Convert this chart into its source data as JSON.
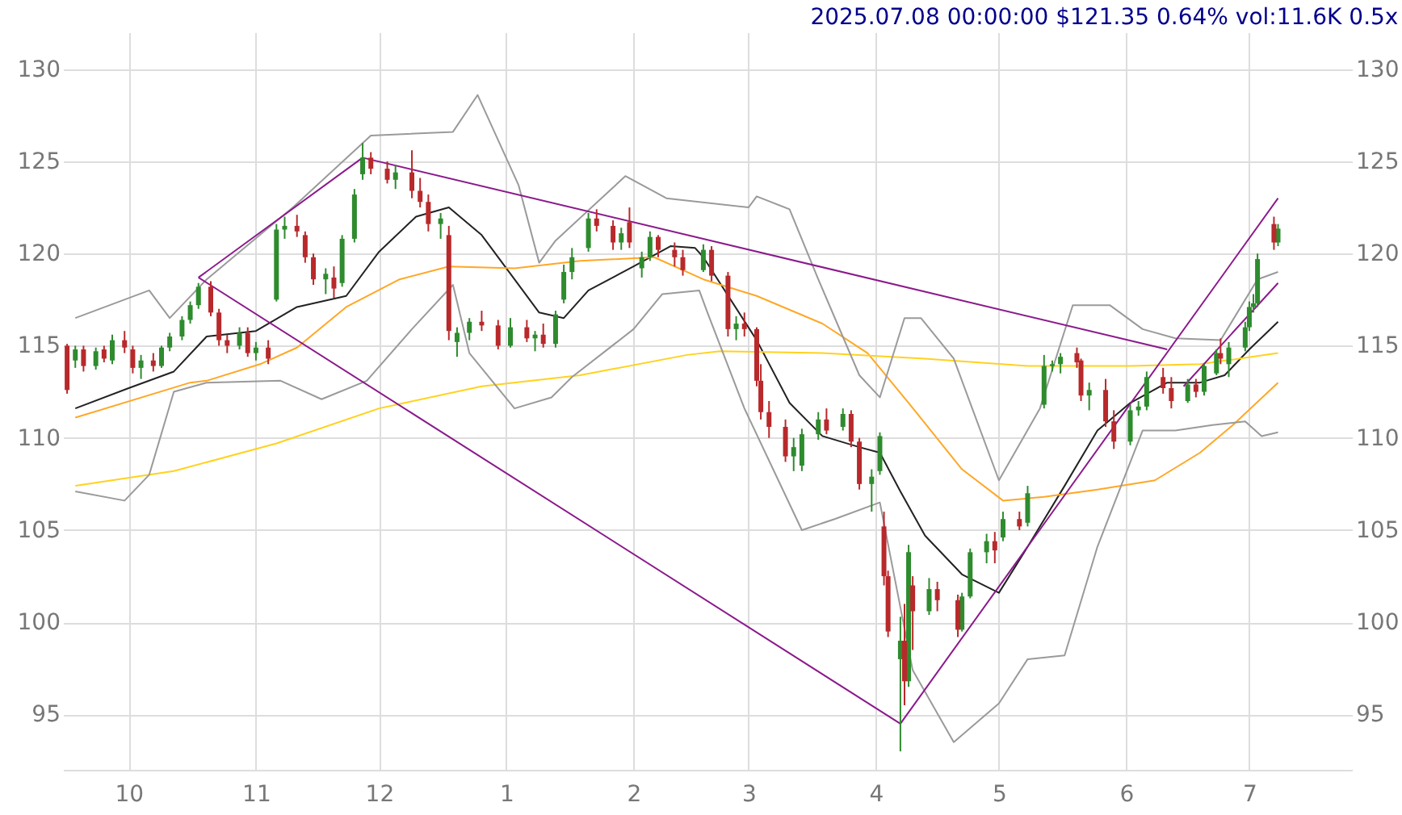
{
  "chart_data": {
    "type": "candlestick",
    "title": "2025.07.08 00:00:00 $121.35 0.64% vol:11.6K 0.5x",
    "xlim": [
      "2024-09-15",
      "2025-07-26"
    ],
    "xticks": [
      {
        "value": "2024-10-01",
        "label": "10"
      },
      {
        "value": "2024-11-01",
        "label": "11"
      },
      {
        "value": "2024-12-01",
        "label": "12"
      },
      {
        "value": "2025-01-01",
        "label": "1"
      },
      {
        "value": "2025-02-01",
        "label": "2"
      },
      {
        "value": "2025-03-01",
        "label": "3"
      },
      {
        "value": "2025-04-01",
        "label": "4"
      },
      {
        "value": "2025-05-01",
        "label": "5"
      },
      {
        "value": "2025-06-01",
        "label": "6"
      },
      {
        "value": "2025-07-01",
        "label": "7"
      }
    ],
    "ylim": [
      92,
      132
    ],
    "yticks": [
      95,
      100,
      105,
      110,
      115,
      120,
      125,
      130
    ],
    "y2lim": [
      92,
      132
    ],
    "y2ticks": [
      95,
      100,
      105,
      110,
      115,
      120,
      125,
      130
    ],
    "grid": true,
    "series": [
      {
        "color": "#2e8b2e",
        "x": [
          "2024-09-18",
          "2024-09-23",
          "2024-09-27",
          "2024-10-04",
          "2024-10-09",
          "2024-10-11",
          "2024-10-14",
          "2024-10-16",
          "2024-10-18",
          "2024-10-28",
          "2024-11-01",
          "2024-11-06",
          "2024-11-08",
          "2024-11-18",
          "2024-11-22",
          "2024-11-25",
          "2024-11-27",
          "2024-12-05",
          "2024-12-16",
          "2024-12-20",
          "2024-12-23",
          "2025-01-02",
          "2025-01-08",
          "2025-01-13",
          "2025-01-15",
          "2025-01-17",
          "2025-01-21",
          "2025-01-29",
          "2025-02-03",
          "2025-02-05",
          "2025-02-18",
          "2025-02-26",
          "2025-03-12",
          "2025-03-14",
          "2025-03-18",
          "2025-03-24",
          "2025-03-31",
          "2025-04-02",
          "2025-04-07",
          "2025-04-09",
          "2025-04-14",
          "2025-04-22",
          "2025-04-24",
          "2025-04-28",
          "2025-05-02",
          "2025-05-08",
          "2025-05-12",
          "2025-05-14",
          "2025-05-16",
          "2025-05-23",
          "2025-06-02",
          "2025-06-04",
          "2025-06-06",
          "2025-06-16",
          "2025-06-20",
          "2025-06-23",
          "2025-06-26",
          "2025-06-30",
          "2025-07-01",
          "2025-07-02",
          "2025-07-03",
          "2025-07-08"
        ],
        "ohlc": [
          [
            114.2,
            115.0,
            113.8,
            114.8
          ],
          [
            113.9,
            114.9,
            113.7,
            114.7
          ],
          [
            114.2,
            115.6,
            114.0,
            115.3
          ],
          [
            113.8,
            114.5,
            113.2,
            114.2
          ],
          [
            113.9,
            115.0,
            113.8,
            114.9
          ],
          [
            114.9,
            115.7,
            114.7,
            115.5
          ],
          [
            115.5,
            116.6,
            115.3,
            116.4
          ],
          [
            116.4,
            117.4,
            116.2,
            117.2
          ],
          [
            117.2,
            118.4,
            117.0,
            118.2
          ],
          [
            115.0,
            116.0,
            114.8,
            115.7
          ],
          [
            114.6,
            115.2,
            114.2,
            114.9
          ],
          [
            117.5,
            121.6,
            117.4,
            121.3
          ],
          [
            121.3,
            122.0,
            120.8,
            121.5
          ],
          [
            118.6,
            119.2,
            117.8,
            118.9
          ],
          [
            118.4,
            121.0,
            118.2,
            120.8
          ],
          [
            120.8,
            123.5,
            120.6,
            123.2
          ],
          [
            124.3,
            126.0,
            124.0,
            125.2
          ],
          [
            124.0,
            124.8,
            123.5,
            124.4
          ],
          [
            121.6,
            122.2,
            120.8,
            121.9
          ],
          [
            115.2,
            116.0,
            114.4,
            115.7
          ],
          [
            115.7,
            116.5,
            115.3,
            116.3
          ],
          [
            115.0,
            116.5,
            114.9,
            116.0
          ],
          [
            115.4,
            115.8,
            114.7,
            115.6
          ],
          [
            115.1,
            116.9,
            114.9,
            116.7
          ],
          [
            117.5,
            119.4,
            117.3,
            119.0
          ],
          [
            119.0,
            120.3,
            118.6,
            119.8
          ],
          [
            120.3,
            122.2,
            120.1,
            121.9
          ],
          [
            120.6,
            121.4,
            120.2,
            121.1
          ],
          [
            119.2,
            120.1,
            118.7,
            119.8
          ],
          [
            119.8,
            121.2,
            119.6,
            120.9
          ],
          [
            119.1,
            120.5,
            119.0,
            120.2
          ],
          [
            115.9,
            116.6,
            115.3,
            116.2
          ],
          [
            109.0,
            110.0,
            108.2,
            109.5
          ],
          [
            108.5,
            110.5,
            108.2,
            110.2
          ],
          [
            110.2,
            111.4,
            109.9,
            111.0
          ],
          [
            110.6,
            111.6,
            110.4,
            111.3
          ],
          [
            107.5,
            108.3,
            106.0,
            107.9
          ],
          [
            108.2,
            110.3,
            108.0,
            110.1
          ],
          [
            98.0,
            100.3,
            93.0,
            99.0
          ],
          [
            96.8,
            104.2,
            96.5,
            103.8
          ],
          [
            100.6,
            102.4,
            100.4,
            101.8
          ],
          [
            99.6,
            101.6,
            99.5,
            101.4
          ],
          [
            101.4,
            104.0,
            101.3,
            103.8
          ],
          [
            103.8,
            104.8,
            103.2,
            104.4
          ],
          [
            104.6,
            106.0,
            104.4,
            105.6
          ],
          [
            105.4,
            107.4,
            105.2,
            107.0
          ],
          [
            111.8,
            114.5,
            111.6,
            113.9
          ],
          [
            113.9,
            114.2,
            113.6,
            114.0
          ],
          [
            114.0,
            114.6,
            113.5,
            114.4
          ],
          [
            112.3,
            113.0,
            111.5,
            112.6
          ],
          [
            109.8,
            111.8,
            109.6,
            111.5
          ],
          [
            111.5,
            112.0,
            111.2,
            111.7
          ],
          [
            111.7,
            113.6,
            111.5,
            113.3
          ],
          [
            112.0,
            113.2,
            111.9,
            112.9
          ],
          [
            112.5,
            114.0,
            112.3,
            113.9
          ],
          [
            113.5,
            114.8,
            113.4,
            114.6
          ],
          [
            114.0,
            115.2,
            113.3,
            114.9
          ],
          [
            114.9,
            116.3,
            114.7,
            116.0
          ],
          [
            116.0,
            117.4,
            115.8,
            117.1
          ],
          [
            117.1,
            117.8,
            116.8,
            117.3
          ],
          [
            117.3,
            120.0,
            117.1,
            119.7
          ],
          [
            120.6,
            121.6,
            120.4,
            121.35
          ]
        ]
      },
      {
        "color": "#b8292b",
        "x": [
          "2024-09-16",
          "2024-09-20",
          "2024-09-25",
          "2024-09-30",
          "2024-10-02",
          "2024-10-07",
          "2024-10-21",
          "2024-10-23",
          "2024-10-25",
          "2024-10-30",
          "2024-11-04",
          "2024-11-11",
          "2024-11-13",
          "2024-11-15",
          "2024-11-20",
          "2024-11-29",
          "2024-12-03",
          "2024-12-09",
          "2024-12-11",
          "2024-12-13",
          "2024-12-18",
          "2024-12-26",
          "2024-12-30",
          "2025-01-06",
          "2025-01-10",
          "2025-01-23",
          "2025-01-27",
          "2025-01-31",
          "2025-02-07",
          "2025-02-11",
          "2025-02-13",
          "2025-02-20",
          "2025-02-24",
          "2025-02-28",
          "2025-03-03",
          "2025-03-04",
          "2025-03-06",
          "2025-03-10",
          "2025-03-20",
          "2025-03-26",
          "2025-03-28",
          "2025-04-03",
          "2025-04-04",
          "2025-04-08",
          "2025-04-10",
          "2025-04-16",
          "2025-04-21",
          "2025-04-30",
          "2025-05-06",
          "2025-05-20",
          "2025-05-21",
          "2025-05-27",
          "2025-05-29",
          "2025-06-10",
          "2025-06-12",
          "2025-06-18",
          "2025-06-24",
          "2025-07-07"
        ],
        "ohlc": [
          [
            115.0,
            115.1,
            112.4,
            112.6
          ],
          [
            114.8,
            115.0,
            113.6,
            113.9
          ],
          [
            114.8,
            115.0,
            114.1,
            114.3
          ],
          [
            115.3,
            115.8,
            114.6,
            114.9
          ],
          [
            114.8,
            115.0,
            113.5,
            113.8
          ],
          [
            114.2,
            114.6,
            113.6,
            113.9
          ],
          [
            118.2,
            118.5,
            116.6,
            116.8
          ],
          [
            116.8,
            117.0,
            115.0,
            115.3
          ],
          [
            115.3,
            115.6,
            114.6,
            115.0
          ],
          [
            115.7,
            116.0,
            114.4,
            114.6
          ],
          [
            114.9,
            115.3,
            114.0,
            114.3
          ],
          [
            121.5,
            122.1,
            120.9,
            121.2
          ],
          [
            121.0,
            121.2,
            119.5,
            119.8
          ],
          [
            119.8,
            120.0,
            118.3,
            118.6
          ],
          [
            118.7,
            119.3,
            117.6,
            118.1
          ],
          [
            125.2,
            125.5,
            124.3,
            124.6
          ],
          [
            124.6,
            125.0,
            123.8,
            124.0
          ],
          [
            124.4,
            125.6,
            123.0,
            123.4
          ],
          [
            123.4,
            124.1,
            122.5,
            122.8
          ],
          [
            122.8,
            123.2,
            121.2,
            121.6
          ],
          [
            121.0,
            121.5,
            115.3,
            115.8
          ],
          [
            116.3,
            116.9,
            115.8,
            116.1
          ],
          [
            116.1,
            116.4,
            114.8,
            115.0
          ],
          [
            116.0,
            116.4,
            115.2,
            115.4
          ],
          [
            115.6,
            116.2,
            114.9,
            115.1
          ],
          [
            121.9,
            122.4,
            121.2,
            121.5
          ],
          [
            121.5,
            121.8,
            120.2,
            120.6
          ],
          [
            121.7,
            122.5,
            120.3,
            120.6
          ],
          [
            120.9,
            121.0,
            119.8,
            120.2
          ],
          [
            120.2,
            120.6,
            119.3,
            119.8
          ],
          [
            119.8,
            120.2,
            118.8,
            119.1
          ],
          [
            120.2,
            120.4,
            118.5,
            118.8
          ],
          [
            118.8,
            119.0,
            115.5,
            115.9
          ],
          [
            116.2,
            116.8,
            115.5,
            115.9
          ],
          [
            115.9,
            116.0,
            112.8,
            113.1
          ],
          [
            113.1,
            114.0,
            111.0,
            111.4
          ],
          [
            111.4,
            112.0,
            110.0,
            110.6
          ],
          [
            110.6,
            111.0,
            108.7,
            109.0
          ],
          [
            111.0,
            111.6,
            110.2,
            110.4
          ],
          [
            111.3,
            111.5,
            109.5,
            109.8
          ],
          [
            109.8,
            110.0,
            107.2,
            107.5
          ],
          [
            105.2,
            106.0,
            102.0,
            102.5
          ],
          [
            102.5,
            102.8,
            99.2,
            99.5
          ],
          [
            99.0,
            101.0,
            95.5,
            96.8
          ],
          [
            102.0,
            102.5,
            98.5,
            100.6
          ],
          [
            101.8,
            102.2,
            100.6,
            101.2
          ],
          [
            101.2,
            101.5,
            99.2,
            99.6
          ],
          [
            104.4,
            104.9,
            103.2,
            103.9
          ],
          [
            105.6,
            106.0,
            105.0,
            105.2
          ],
          [
            114.6,
            114.9,
            113.8,
            114.1
          ],
          [
            114.2,
            114.3,
            112.0,
            112.3
          ],
          [
            112.6,
            113.2,
            110.6,
            110.9
          ],
          [
            110.9,
            111.5,
            109.4,
            109.8
          ],
          [
            113.3,
            113.8,
            112.4,
            112.7
          ],
          [
            112.7,
            113.3,
            111.6,
            112.0
          ],
          [
            112.9,
            113.2,
            112.2,
            112.5
          ],
          [
            114.6,
            115.4,
            114.0,
            114.3
          ],
          [
            121.6,
            122.0,
            120.2,
            120.6
          ]
        ]
      },
      {
        "type": "line",
        "color": "#222222",
        "x": [
          "2024-09-18",
          "2024-10-01",
          "2024-10-12",
          "2024-10-20",
          "2024-11-01",
          "2024-11-11",
          "2024-11-23",
          "2024-12-01",
          "2024-12-10",
          "2024-12-18",
          "2024-12-26",
          "2025-01-03",
          "2025-01-09",
          "2025-01-15",
          "2025-01-21",
          "2025-02-01",
          "2025-02-10",
          "2025-02-16",
          "2025-02-18",
          "2025-03-03",
          "2025-03-11",
          "2025-03-19",
          "2025-03-28",
          "2025-04-02",
          "2025-04-07",
          "2025-04-13",
          "2025-04-22",
          "2025-05-01",
          "2025-05-08",
          "2025-05-17",
          "2025-05-25",
          "2025-06-02",
          "2025-06-11",
          "2025-06-19",
          "2025-06-25",
          "2025-07-01",
          "2025-07-08"
        ],
        "values": [
          111.6,
          112.7,
          113.6,
          115.5,
          115.8,
          117.1,
          117.7,
          120.1,
          122.0,
          122.5,
          121.0,
          118.6,
          116.8,
          116.5,
          118.0,
          119.3,
          120.4,
          120.3,
          119.8,
          115.3,
          111.9,
          110.1,
          109.5,
          109.2,
          107.1,
          104.7,
          102.6,
          101.6,
          104.1,
          107.4,
          110.4,
          111.9,
          113.0,
          113.0,
          113.4,
          114.8,
          116.3
        ]
      },
      {
        "type": "line",
        "color": "#ffa726",
        "x": [
          "2024-09-18",
          "2024-10-16",
          "2024-10-20",
          "2024-11-02",
          "2024-11-11",
          "2024-11-23",
          "2024-12-06",
          "2024-12-18",
          "2025-01-03",
          "2025-01-19",
          "2025-02-06",
          "2025-02-18",
          "2025-03-03",
          "2025-03-19",
          "2025-03-30",
          "2025-04-09",
          "2025-04-22",
          "2025-05-02",
          "2025-05-12",
          "2025-05-25",
          "2025-06-08",
          "2025-06-19",
          "2025-06-27",
          "2025-07-08"
        ],
        "values": [
          111.1,
          113.0,
          113.1,
          114.0,
          114.9,
          117.1,
          118.6,
          119.3,
          119.2,
          119.6,
          119.8,
          118.6,
          117.7,
          116.2,
          114.6,
          111.9,
          108.3,
          106.6,
          106.8,
          107.2,
          107.7,
          109.2,
          110.7,
          113.0
        ]
      },
      {
        "type": "line",
        "color": "#ffd21f",
        "x": [
          "2024-09-18",
          "2024-10-12",
          "2024-11-06",
          "2024-12-01",
          "2024-12-26",
          "2025-01-19",
          "2025-02-14",
          "2025-02-22",
          "2025-03-19",
          "2025-04-13",
          "2025-05-08",
          "2025-06-02",
          "2025-06-19",
          "2025-07-08"
        ],
        "values": [
          107.4,
          108.2,
          109.7,
          111.6,
          112.8,
          113.4,
          114.5,
          114.7,
          114.6,
          114.3,
          113.9,
          113.9,
          114.0,
          114.6
        ]
      },
      {
        "type": "line",
        "color": "#9a9a9a",
        "x": [
          "2024-09-18",
          "2024-10-06",
          "2024-10-11",
          "2024-10-20",
          "2024-11-10",
          "2024-11-29",
          "2024-12-19",
          "2024-12-25",
          "2025-01-04",
          "2025-01-09",
          "2025-01-13",
          "2025-01-30",
          "2025-02-09",
          "2025-03-01",
          "2025-03-03",
          "2025-03-11",
          "2025-03-18",
          "2025-03-28",
          "2025-04-02",
          "2025-04-08",
          "2025-04-12",
          "2025-04-20",
          "2025-05-01",
          "2025-05-11",
          "2025-05-19",
          "2025-05-28",
          "2025-06-05",
          "2025-06-13",
          "2025-06-24",
          "2025-07-03",
          "2025-07-08"
        ],
        "values": [
          116.5,
          118.0,
          116.5,
          118.6,
          122.5,
          126.4,
          126.6,
          128.6,
          123.7,
          119.5,
          120.7,
          124.2,
          123.0,
          122.5,
          123.1,
          122.4,
          118.6,
          113.4,
          112.2,
          116.5,
          116.5,
          114.3,
          107.7,
          111.6,
          117.2,
          117.2,
          115.9,
          115.4,
          115.3,
          118.6,
          119.0
        ]
      },
      {
        "type": "line",
        "color": "#9a9a9a",
        "x": [
          "2024-09-18",
          "2024-09-30",
          "2024-10-06",
          "2024-10-12",
          "2024-10-20",
          "2024-11-07",
          "2024-11-17",
          "2024-11-28",
          "2024-12-09",
          "2024-12-19",
          "2024-12-23",
          "2025-01-03",
          "2025-01-12",
          "2025-01-17",
          "2025-02-01",
          "2025-02-08",
          "2025-02-17",
          "2025-02-19",
          "2025-02-28",
          "2025-03-14",
          "2025-03-22",
          "2025-04-02",
          "2025-04-10",
          "2025-04-20",
          "2025-05-01",
          "2025-05-08",
          "2025-05-17",
          "2025-05-25",
          "2025-06-05",
          "2025-06-13",
          "2025-06-22",
          "2025-06-30",
          "2025-07-04",
          "2025-07-08"
        ],
        "values": [
          107.1,
          106.6,
          108.0,
          112.5,
          113.0,
          113.1,
          112.1,
          113.1,
          115.9,
          118.3,
          114.6,
          111.6,
          112.2,
          113.3,
          115.9,
          117.8,
          118.0,
          116.8,
          111.6,
          105.0,
          105.6,
          106.5,
          97.4,
          93.5,
          95.6,
          98.0,
          98.2,
          104.1,
          110.4,
          110.4,
          110.7,
          110.9,
          110.1,
          110.3
        ]
      },
      {
        "type": "line",
        "color": "#8b1a8b",
        "x": [
          "2024-10-18",
          "2024-11-27",
          "2025-06-11"
        ],
        "values": [
          118.7,
          125.2,
          114.8
        ]
      },
      {
        "type": "line",
        "color": "#8b1a8b",
        "x": [
          "2024-10-18",
          "2025-04-07",
          "2025-07-08"
        ],
        "values": [
          118.7,
          94.5,
          123.0
        ]
      },
      {
        "type": "line",
        "color": "#8b1a8b",
        "x": [
          "2025-06-15",
          "2025-07-08"
        ],
        "values": [
          112.8,
          118.4
        ]
      }
    ]
  }
}
